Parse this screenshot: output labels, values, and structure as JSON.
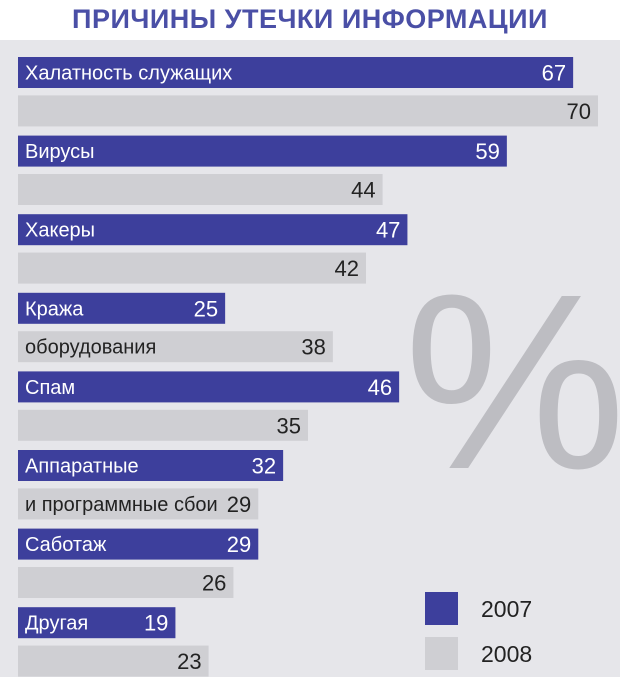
{
  "chart_data": {
    "type": "bar",
    "orientation": "horizontal",
    "title": "ПРИЧИНЫ УТЕЧКИ ИНФОРМАЦИИ",
    "unit_symbol": "%",
    "categories": [
      [
        "Халатность служащих"
      ],
      [
        "Вирусы"
      ],
      [
        "Хакеры"
      ],
      [
        "Кража",
        "оборудования"
      ],
      [
        "Спам"
      ],
      [
        "Аппаратные",
        "и программные сбои"
      ],
      [
        "Саботаж"
      ],
      [
        "Другая"
      ]
    ],
    "series": [
      {
        "name": "2007",
        "color": "#3d3f9c",
        "values": [
          67,
          59,
          47,
          25,
          46,
          32,
          29,
          19
        ]
      },
      {
        "name": "2008",
        "color": "#cfcfd3",
        "values": [
          70,
          44,
          42,
          38,
          35,
          29,
          26,
          23
        ]
      }
    ],
    "xlim": [
      0,
      70
    ],
    "legend": {
      "position": "bottom-right",
      "labels": [
        "2007",
        "2008"
      ]
    },
    "grid": false
  }
}
